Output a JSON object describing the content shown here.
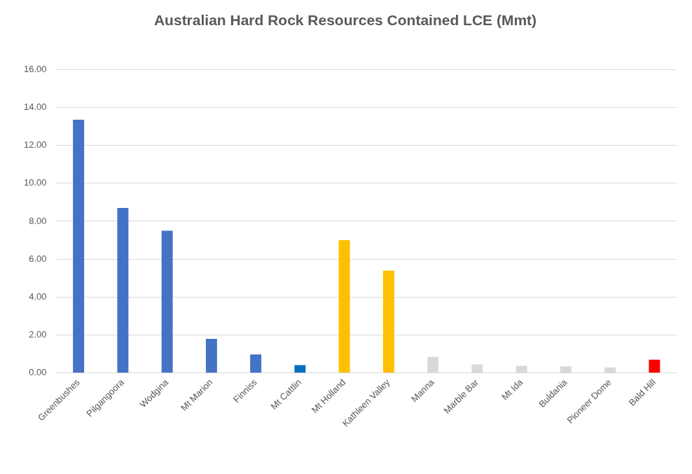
{
  "chart_data": {
    "type": "bar",
    "title": "Australian Hard Rock Resources Contained LCE (Mmt)",
    "categories": [
      "Greenbushes",
      "Pilgangoora",
      "Wodgina",
      "Mt Marion",
      "Finniss",
      "Mt Cattlin",
      "Mt Holland",
      "Kathleen Valley",
      "Manna",
      "Marble Bar",
      "Mt Ida",
      "Buldania",
      "Pioneer Dome",
      "Bald Hill"
    ],
    "values": [
      13.35,
      8.7,
      7.5,
      1.8,
      0.98,
      0.42,
      7.0,
      5.4,
      0.85,
      0.45,
      0.38,
      0.35,
      0.3,
      0.7
    ],
    "colors": [
      "#4472c4",
      "#4472c4",
      "#4472c4",
      "#4472c4",
      "#4472c4",
      "#0070c0",
      "#ffc000",
      "#ffc000",
      "#d9d9d9",
      "#d9d9d9",
      "#d9d9d9",
      "#d9d9d9",
      "#d9d9d9",
      "#ff0000"
    ],
    "ylim": [
      0,
      16
    ],
    "yticks": [
      {
        "value": 0,
        "label": "0.00"
      },
      {
        "value": 2,
        "label": "2.00"
      },
      {
        "value": 4,
        "label": "4.00"
      },
      {
        "value": 6,
        "label": "6.00"
      },
      {
        "value": 8,
        "label": "8.00"
      },
      {
        "value": 10,
        "label": "10.00"
      },
      {
        "value": 12,
        "label": "12.00"
      },
      {
        "value": 14,
        "label": "14.00"
      },
      {
        "value": 16,
        "label": "16.00"
      }
    ],
    "grid": true
  }
}
